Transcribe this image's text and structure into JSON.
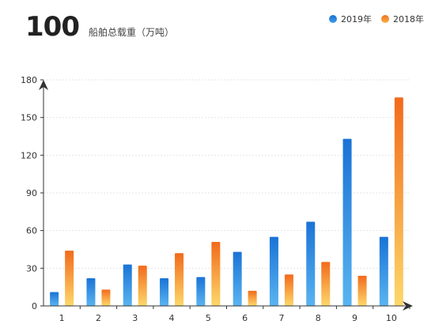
{
  "header": {
    "value": "100",
    "label": "船舶总载重（万吨）"
  },
  "colors": {
    "series_2019_top": "#1a73d6",
    "series_2019_bottom": "#5ab4f0",
    "series_2018_top": "#f26a1b",
    "series_2018_bottom": "#fdd86a",
    "grid": "#e6e6e6",
    "axis": "#333333"
  },
  "chart_data": {
    "type": "bar",
    "categories": [
      "1",
      "2",
      "3",
      "4",
      "5",
      "6",
      "7",
      "8",
      "9",
      "10"
    ],
    "series": [
      {
        "name": "2019年",
        "values": [
          11,
          22,
          33,
          22,
          23,
          43,
          55,
          67,
          133,
          55
        ]
      },
      {
        "name": "2018年",
        "values": [
          44,
          13,
          32,
          42,
          51,
          12,
          25,
          35,
          24,
          166
        ]
      }
    ],
    "yticks": [
      0,
      30,
      60,
      90,
      120,
      150,
      180
    ],
    "ylim": [
      0,
      180
    ],
    "grid": true,
    "legend": "top-right"
  }
}
